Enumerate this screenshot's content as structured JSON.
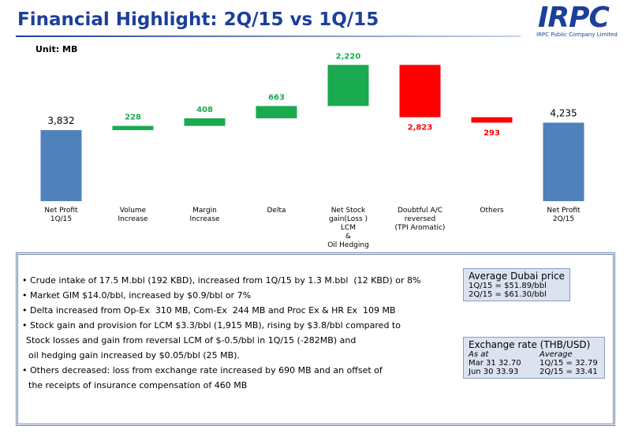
{
  "header": {
    "title": "Financial Highlight: 2Q/15 vs 1Q/15",
    "logo": "IRPC",
    "company": "IRPC Public Company Limited"
  },
  "chart_data": {
    "type": "waterfall",
    "unit": "Unit: MB",
    "categories": [
      "Net Profit\n1Q/15",
      "Volume\nIncrease",
      "Margin\nIncrease",
      "Delta",
      "Net Stock\ngain(Loss )\nLCM\n&\nOil Hedging",
      "Doubtful A/C\nreversed\n(TPI Aromatic)",
      "Others",
      "Net Profit\n2Q/15"
    ],
    "values": [
      3832,
      228,
      408,
      663,
      2220,
      -2823,
      -293,
      4235
    ],
    "value_labels": [
      "3,832",
      "228",
      "408",
      "663",
      "2,220",
      "2,823",
      "293",
      "4,235"
    ],
    "measure": [
      "total",
      "relative",
      "relative",
      "relative",
      "relative",
      "relative",
      "relative",
      "total"
    ],
    "total_color": "#4f81bd",
    "increase_color": "#1aaa50",
    "decrease_color": "#ff0000",
    "ylim": [
      0,
      8000
    ]
  },
  "bullets": [
    [
      "Crude intake of 17.5 M.bbl (192 KBD), increased from 1Q/15 by 1.3 M.bbl  (12 KBD) or 8%"
    ],
    [
      "Market GIM $14.0/bbl, increased by $0.9/bbl or 7%"
    ],
    [
      "Delta increased from Op-Ex  310 MB, Com-Ex  244 MB and Proc Ex & HR Ex  109 MB"
    ],
    [
      "Stock gain and provision for LCM $3.3/bbl (1,915 MB), rising by $3.8/bbl compared to",
      "Stock losses and gain from reversal LCM of $-0.5/bbl in 1Q/15 (-282MB) and",
      "oil hedging gain increased by $0.05/bbl (25 MB)."
    ],
    [
      "Others decreased: loss from exchange rate increased by 690 MB and an offset of",
      "the receipts of insurance compensation of 460 MB"
    ]
  ],
  "dubai": {
    "title": "Average Dubai price",
    "lines": [
      "1Q/15 =  $51.89/bbl",
      "2Q/15 =  $61.30/bbl"
    ]
  },
  "exchange": {
    "title": "Exchange rate (THB/USD)",
    "header": [
      "As at",
      "Average"
    ],
    "rows": [
      [
        "Mar 31  32.70",
        "1Q/15 = 32.79"
      ],
      [
        "Jun 30  33.93",
        "2Q/15 = 33.41"
      ]
    ]
  }
}
